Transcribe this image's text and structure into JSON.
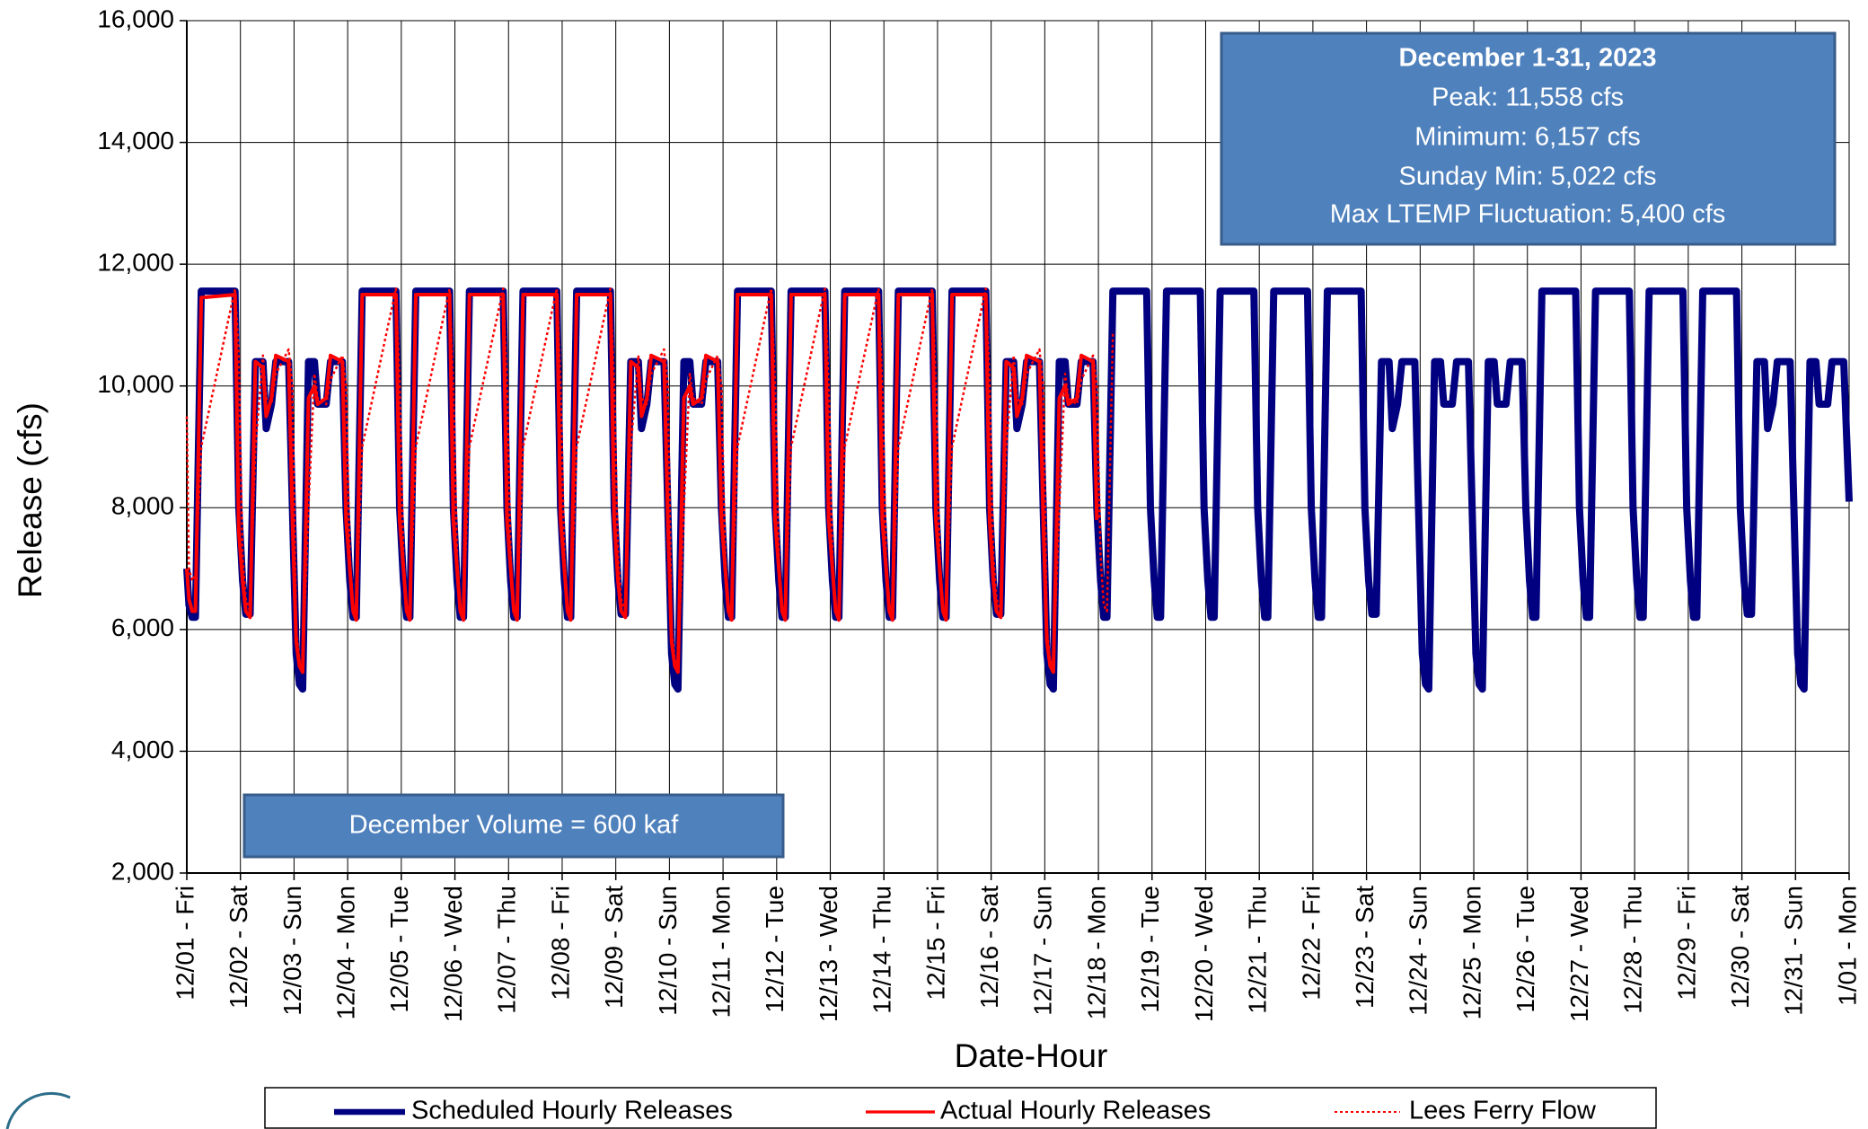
{
  "chart_data": {
    "type": "line",
    "x_label": "Date-Hour",
    "y_label": "Release (cfs)",
    "annotations": {
      "stats_title": "December 1-31, 2023",
      "stats": [
        "Peak: 11,558 cfs",
        "Minimum: 6,157 cfs",
        "Sunday Min: 5,022 cfs",
        "Max LTEMP Fluctuation: 5,400 cfs"
      ],
      "volume": "December Volume = 600 kaf"
    },
    "xlim": [
      0,
      31
    ],
    "ylim": [
      2000,
      16000
    ],
    "grid": true,
    "legend": "bottom",
    "yticks": [
      {
        "value": 2000,
        "label": "2,000"
      },
      {
        "value": 4000,
        "label": "4,000"
      },
      {
        "value": 6000,
        "label": "6,000"
      },
      {
        "value": 8000,
        "label": "8,000"
      },
      {
        "value": 10000,
        "label": "10,000"
      },
      {
        "value": 12000,
        "label": "12,000"
      },
      {
        "value": 14000,
        "label": "14,000"
      },
      {
        "value": 16000,
        "label": "16,000"
      }
    ],
    "xticks": [
      {
        "value": 0,
        "label": "12/01 - Fri"
      },
      {
        "value": 1,
        "label": "12/02 - Sat"
      },
      {
        "value": 2,
        "label": "12/03 - Sun"
      },
      {
        "value": 3,
        "label": "12/04 - Mon"
      },
      {
        "value": 4,
        "label": "12/05 - Tue"
      },
      {
        "value": 5,
        "label": "12/06 - Wed"
      },
      {
        "value": 6,
        "label": "12/07 - Thu"
      },
      {
        "value": 7,
        "label": "12/08 - Fri"
      },
      {
        "value": 8,
        "label": "12/09 - Sat"
      },
      {
        "value": 9,
        "label": "12/10 - Sun"
      },
      {
        "value": 10,
        "label": "12/11 - Mon"
      },
      {
        "value": 11,
        "label": "12/12 - Tue"
      },
      {
        "value": 12,
        "label": "12/13 - Wed"
      },
      {
        "value": 13,
        "label": "12/14 - Thu"
      },
      {
        "value": 14,
        "label": "12/15 - Fri"
      },
      {
        "value": 15,
        "label": "12/16 - Sat"
      },
      {
        "value": 16,
        "label": "12/17 - Sun"
      },
      {
        "value": 17,
        "label": "12/18 - Mon"
      },
      {
        "value": 18,
        "label": "12/19 - Tue"
      },
      {
        "value": 19,
        "label": "12/20 - Wed"
      },
      {
        "value": 20,
        "label": "12/21 - Thu"
      },
      {
        "value": 21,
        "label": "12/22 - Fri"
      },
      {
        "value": 22,
        "label": "12/23 - Sat"
      },
      {
        "value": 23,
        "label": "12/24 - Sun"
      },
      {
        "value": 24,
        "label": "12/25 - Mon"
      },
      {
        "value": 25,
        "label": "12/26 - Tue"
      },
      {
        "value": 26,
        "label": "12/27 - Wed"
      },
      {
        "value": 27,
        "label": "12/28 - Thu"
      },
      {
        "value": 28,
        "label": "12/29 - Fri"
      },
      {
        "value": 29,
        "label": "12/30 - Sat"
      },
      {
        "value": 30,
        "label": "12/31 - Sun"
      },
      {
        "value": 31,
        "label": "1/01 - Mon"
      }
    ],
    "x": [
      0,
      0.04,
      0.1,
      0.16,
      0.27,
      0.9,
      0.97,
      1.04,
      1.1,
      1.18,
      1.28,
      1.42,
      1.48,
      1.58,
      1.66,
      1.9,
      1.97,
      2.04,
      2.1,
      2.16,
      2.27,
      2.38,
      2.44,
      2.6,
      2.68,
      2.9,
      2.97,
      3.04,
      3.1,
      3.16,
      3.27,
      3.9,
      3.97,
      4.04,
      4.1,
      4.16,
      4.27,
      4.9,
      4.97,
      5.04,
      5.1,
      5.16,
      5.27,
      5.9,
      5.97,
      6.04,
      6.1,
      6.16,
      6.27,
      6.9,
      6.97,
      7.04,
      7.1,
      7.16,
      7.27,
      7.9,
      7.97,
      8.04,
      8.1,
      8.18,
      8.28,
      8.42,
      8.48,
      8.58,
      8.66,
      8.9,
      8.97,
      9.04,
      9.1,
      9.16,
      9.27,
      9.38,
      9.44,
      9.6,
      9.68,
      9.9,
      9.97,
      10.04,
      10.1,
      10.16,
      10.27,
      10.9,
      10.97,
      11.04,
      11.1,
      11.16,
      11.27,
      11.9,
      11.97,
      12.04,
      12.1,
      12.16,
      12.27,
      12.9,
      12.97,
      13.04,
      13.1,
      13.16,
      13.27,
      13.9,
      13.97,
      14.04,
      14.1,
      14.16,
      14.27,
      14.9,
      14.97,
      15.04,
      15.1,
      15.18,
      15.28,
      15.42,
      15.48,
      15.58,
      15.66,
      15.9,
      15.97,
      16.04,
      16.1,
      16.16,
      16.27,
      16.38,
      16.44,
      16.6,
      16.68,
      16.9,
      16.97,
      17.04,
      17.1,
      17.16,
      17.27,
      17.9,
      17.97,
      18.04,
      18.1,
      18.16,
      18.27,
      18.9,
      18.97,
      19.04,
      19.1,
      19.16,
      19.27,
      19.9,
      19.97,
      20.04,
      20.1,
      20.16,
      20.27,
      20.9,
      20.97,
      21.04,
      21.1,
      21.16,
      21.27,
      21.9,
      21.97,
      22.04,
      22.1,
      22.18,
      22.28,
      22.42,
      22.48,
      22.58,
      22.66,
      22.9,
      22.97,
      23.04,
      23.1,
      23.16,
      23.27,
      23.38,
      23.44,
      23.6,
      23.68,
      23.9,
      23.97,
      24.04,
      24.1,
      24.16,
      24.27,
      24.38,
      24.44,
      24.6,
      24.68,
      24.9,
      24.97,
      25.04,
      25.1,
      25.16,
      25.27,
      25.9,
      25.97,
      26.04,
      26.1,
      26.16,
      26.27,
      26.9,
      26.97,
      27.04,
      27.1,
      27.16,
      27.27,
      27.9,
      27.97,
      28.04,
      28.1,
      28.16,
      28.27,
      28.9,
      28.97,
      29.04,
      29.1,
      29.18,
      29.28,
      29.42,
      29.48,
      29.58,
      29.66,
      29.9,
      29.97,
      30.04,
      30.1,
      30.16,
      30.27,
      30.38,
      30.44,
      30.6,
      30.68,
      30.9,
      31
    ],
    "series": [
      {
        "name": "Scheduled Hourly Releases",
        "color": "#000080",
        "style": "solid",
        "values": [
          7000,
          6400,
          6200,
          6200,
          11558,
          11558,
          8000,
          6800,
          6250,
          6250,
          10400,
          10400,
          9300,
          9700,
          10400,
          10400,
          8000,
          5600,
          5100,
          5022,
          10400,
          10400,
          9700,
          9700,
          10400,
          10400,
          8000,
          6800,
          6200,
          6200,
          11558,
          11558,
          8000,
          6800,
          6200,
          6200,
          11558,
          11558,
          8000,
          6800,
          6200,
          6200,
          11558,
          11558,
          8000,
          6800,
          6200,
          6200,
          11558,
          11558,
          8000,
          6800,
          6200,
          6200,
          11558,
          11558,
          8000,
          6800,
          6250,
          6250,
          10400,
          10400,
          9300,
          9700,
          10400,
          10400,
          8000,
          5600,
          5100,
          5022,
          10400,
          10400,
          9700,
          9700,
          10400,
          10400,
          8000,
          6800,
          6200,
          6200,
          11558,
          11558,
          8000,
          6800,
          6200,
          6200,
          11558,
          11558,
          8000,
          6800,
          6200,
          6200,
          11558,
          11558,
          8000,
          6800,
          6200,
          6200,
          11558,
          11558,
          8000,
          6800,
          6200,
          6200,
          11558,
          11558,
          8000,
          6800,
          6250,
          6250,
          10400,
          10400,
          9300,
          9700,
          10400,
          10400,
          8000,
          5600,
          5100,
          5022,
          10400,
          10400,
          9700,
          9700,
          10400,
          10400,
          8000,
          6800,
          6200,
          6200,
          11558,
          11558,
          8000,
          6800,
          6200,
          6200,
          11558,
          11558,
          8000,
          6800,
          6200,
          6200,
          11558,
          11558,
          8000,
          6800,
          6200,
          6200,
          11558,
          11558,
          8000,
          6800,
          6200,
          6200,
          11558,
          11558,
          8000,
          6800,
          6250,
          6250,
          10400,
          10400,
          9300,
          9700,
          10400,
          10400,
          8000,
          5600,
          5100,
          5022,
          10400,
          10400,
          9700,
          9700,
          10400,
          10400,
          8000,
          5600,
          5100,
          5022,
          10400,
          10400,
          9700,
          9700,
          10400,
          10400,
          8000,
          6800,
          6200,
          6200,
          11558,
          11558,
          8000,
          6800,
          6200,
          6200,
          11558,
          11558,
          8000,
          6800,
          6200,
          6200,
          11558,
          11558,
          8000,
          6800,
          6200,
          6200,
          11558,
          11558,
          8000,
          6800,
          6250,
          6250,
          10400,
          10400,
          9300,
          9700,
          10400,
          10400,
          8000,
          5600,
          5100,
          5022,
          10400,
          10400,
          9700,
          9700,
          10400,
          10400,
          8100
        ]
      },
      {
        "name": "Actual Hourly Releases",
        "color": "#ff0000",
        "style": "solid",
        "values": [
          7000,
          6500,
          6300,
          6300,
          11450,
          11500,
          7600,
          6800,
          6300,
          6200,
          10400,
          10300,
          9500,
          9800,
          10500,
          10400,
          7800,
          5800,
          5400,
          5300,
          9800,
          10000,
          9700,
          9800,
          10500,
          10400,
          7800,
          7000,
          6300,
          6157,
          11500,
          11500,
          7800,
          7000,
          6300,
          6157,
          11500,
          11500,
          7800,
          7000,
          6300,
          6157,
          11500,
          11500,
          7800,
          7000,
          6300,
          6157,
          11500,
          11500,
          7800,
          7000,
          6300,
          6157,
          11500,
          11500,
          7800,
          6800,
          6300,
          6200,
          10400,
          10300,
          9500,
          9800,
          10500,
          10400,
          7800,
          5800,
          5400,
          5300,
          9800,
          10000,
          9700,
          9800,
          10500,
          10400,
          7800,
          7000,
          6300,
          6157,
          11500,
          11500,
          7800,
          7000,
          6300,
          6157,
          11500,
          11500,
          7800,
          7000,
          6300,
          6157,
          11500,
          11500,
          7800,
          7000,
          6300,
          6157,
          11500,
          11500,
          7800,
          7000,
          6300,
          6157,
          11500,
          11500,
          7800,
          6800,
          6300,
          6200,
          10400,
          10300,
          9500,
          9800,
          10500,
          10400,
          7800,
          5800,
          5400,
          5300,
          9800,
          10000,
          9700,
          9800,
          10500,
          10400,
          7800,
          null,
          null,
          null,
          null,
          null,
          null,
          null,
          null,
          null,
          null,
          null,
          null,
          null,
          null,
          null,
          null,
          null,
          null,
          null,
          null,
          null,
          null,
          null,
          null,
          null,
          null,
          null,
          null,
          null,
          null,
          null,
          null,
          null,
          null,
          null,
          null,
          null,
          null,
          null,
          null,
          null,
          null,
          null,
          null,
          null,
          null,
          null,
          null,
          null,
          null,
          null,
          null,
          null,
          null,
          null,
          null,
          null,
          null,
          null,
          null,
          null,
          null,
          null,
          null,
          null,
          null,
          null,
          null,
          null,
          null,
          null,
          null,
          null,
          null,
          null,
          null,
          null,
          null,
          null,
          null,
          null,
          null,
          null,
          null,
          null,
          null,
          null,
          null,
          null,
          null,
          null,
          null,
          null,
          null,
          null,
          null,
          null,
          null,
          null,
          null,
          null,
          null,
          null,
          null
        ]
      },
      {
        "name": "Lees Ferry Flow",
        "color": "#ff0000",
        "style": "dotted",
        "values": [
          9500,
          7000,
          6800,
          6900,
          9000,
          11600,
          10500,
          7200,
          6500,
          6300,
          9000,
          10500,
          9800,
          9700,
          10200,
          10600,
          10000,
          6000,
          5500,
          5400,
          8000,
          10200,
          9800,
          9700,
          10100,
          10500,
          10000,
          7200,
          6400,
          6300,
          9000,
          11600,
          10000,
          7200,
          6400,
          6300,
          9000,
          11600,
          10000,
          7200,
          6400,
          6300,
          9000,
          11600,
          10000,
          7200,
          6400,
          6300,
          9000,
          11600,
          10000,
          7200,
          6400,
          6300,
          9000,
          11600,
          10000,
          7200,
          6500,
          6300,
          9000,
          10500,
          9800,
          9700,
          10200,
          10600,
          10000,
          6000,
          5500,
          5400,
          8000,
          10200,
          9800,
          9700,
          10100,
          10500,
          10000,
          7200,
          6400,
          6300,
          9000,
          11600,
          10000,
          7200,
          6400,
          6300,
          9000,
          11600,
          10000,
          7200,
          6400,
          6300,
          9000,
          11600,
          10000,
          7200,
          6400,
          6300,
          9000,
          11600,
          10000,
          7200,
          6400,
          6300,
          9000,
          11600,
          10000,
          7200,
          6500,
          6300,
          9000,
          10500,
          9800,
          9700,
          10200,
          10600,
          10000,
          6000,
          5500,
          5400,
          8000,
          10200,
          9800,
          9700,
          10100,
          10500,
          10000,
          7200,
          6400,
          6300,
          10900,
          null,
          null,
          null,
          null,
          null,
          null,
          null,
          null,
          null,
          null,
          null,
          null,
          null,
          null,
          null,
          null,
          null,
          null,
          null,
          null,
          null,
          null,
          null,
          null,
          null,
          null,
          null,
          null,
          null,
          null,
          null,
          null,
          null,
          null,
          null,
          null,
          null,
          null,
          null,
          null,
          null,
          null,
          null,
          null,
          null,
          null,
          null,
          null,
          null,
          null,
          null,
          null,
          null,
          null,
          null,
          null,
          null,
          null,
          null,
          null,
          null,
          null,
          null,
          null,
          null,
          null,
          null,
          null,
          null,
          null,
          null,
          null,
          null,
          null,
          null,
          null,
          null,
          null,
          null,
          null,
          null,
          null,
          null,
          null,
          null,
          null,
          null,
          null,
          null,
          null,
          null,
          null,
          null,
          null,
          null,
          null,
          null,
          null,
          null,
          null
        ]
      }
    ]
  }
}
